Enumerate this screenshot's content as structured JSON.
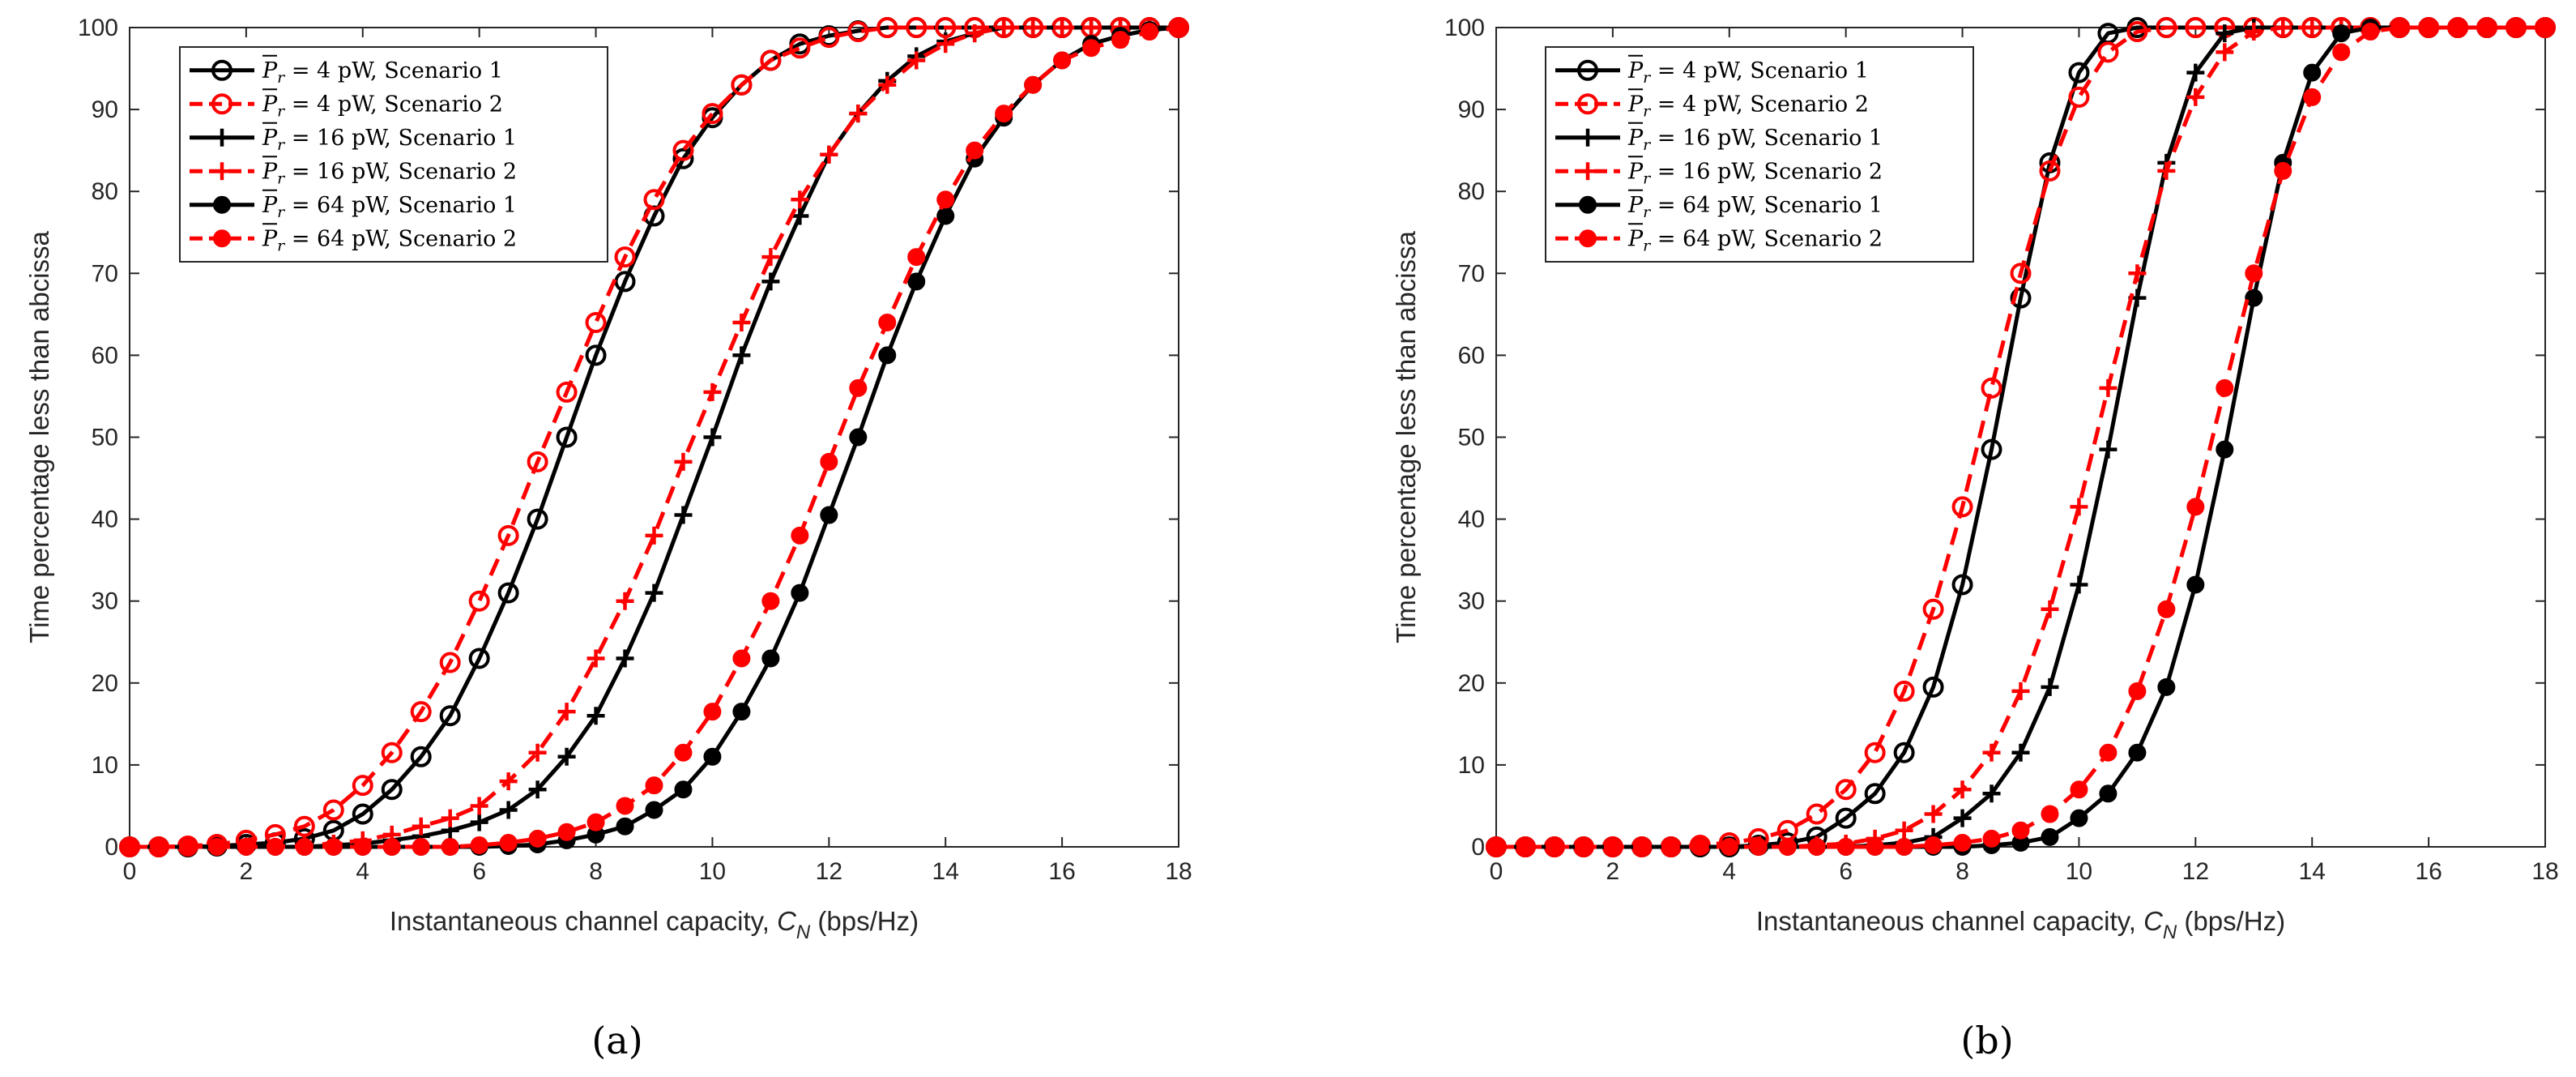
{
  "chart_data": [
    {
      "type": "line",
      "panel_label": "(a)",
      "xlabel": "Instantaneous channel capacity, ",
      "xlabel_var": "C",
      "xlabel_sub": "N",
      "xlabel_unit": " (bps/Hz)",
      "ylabel": "Time percentage less than abcissa",
      "xlim": [
        0,
        18
      ],
      "ylim": [
        0,
        100
      ],
      "xticks": [
        "0",
        "2",
        "4",
        "6",
        "8",
        "10",
        "12",
        "14",
        "16",
        "18"
      ],
      "yticks": [
        "0",
        "10",
        "20",
        "30",
        "40",
        "50",
        "60",
        "70",
        "80",
        "90",
        "100"
      ],
      "x": [
        0,
        0.5,
        1,
        1.5,
        2,
        2.5,
        3,
        3.5,
        4,
        4.5,
        5,
        5.5,
        6,
        6.5,
        7,
        7.5,
        8,
        8.5,
        9,
        9.5,
        10,
        10.5,
        11,
        11.5,
        12,
        12.5,
        13,
        13.5,
        14,
        14.5,
        15,
        15.5,
        16,
        16.5,
        17,
        17.5,
        18
      ],
      "series": [
        {
          "name_pre": "P",
          "name_sub": "r",
          "name_post": " = 4 pW, Scenario 1",
          "color": "#000000",
          "dashed": false,
          "marker": "open-circle",
          "values": [
            0,
            0,
            0,
            0.1,
            0.3,
            0.5,
            1,
            2,
            4,
            7,
            11,
            16,
            23,
            31,
            40,
            50,
            60,
            69,
            77,
            84,
            89,
            93,
            96,
            98,
            99,
            99.6,
            100,
            100,
            100,
            100,
            100,
            100,
            100,
            100,
            100,
            100,
            100
          ]
        },
        {
          "name_pre": "P",
          "name_sub": "r",
          "name_post": " = 4 pW, Scenario 2",
          "color": "#ff0000",
          "dashed": true,
          "marker": "open-circle",
          "values": [
            0,
            0,
            0.1,
            0.3,
            0.8,
            1.5,
            2.5,
            4.5,
            7.5,
            11.5,
            16.5,
            22.5,
            30,
            38,
            47,
            55.5,
            64,
            72,
            79,
            85,
            89.5,
            93,
            96,
            97.5,
            98.8,
            99.5,
            100,
            100,
            100,
            100,
            100,
            100,
            100,
            100,
            100,
            100,
            100
          ]
        },
        {
          "name_pre": "P",
          "name_sub": "r",
          "name_post": " = 16 pW, Scenario 1",
          "color": "#000000",
          "dashed": false,
          "marker": "plus",
          "values": [
            0,
            0,
            0,
            0,
            0,
            0,
            0,
            0.2,
            0.4,
            0.8,
            1.3,
            2,
            3,
            4.5,
            7,
            11,
            16,
            23,
            31,
            40.5,
            50,
            60,
            69,
            77,
            84.5,
            89.5,
            93.5,
            96.5,
            98.3,
            99.3,
            100,
            100,
            100,
            100,
            100,
            100,
            100
          ]
        },
        {
          "name_pre": "P",
          "name_sub": "r",
          "name_post": " = 16 pW, Scenario 2",
          "color": "#ff0000",
          "dashed": true,
          "marker": "plus",
          "values": [
            0,
            0,
            0,
            0,
            0,
            0,
            0.2,
            0.4,
            0.8,
            1.5,
            2.5,
            3.5,
            5,
            8,
            11.5,
            16.5,
            23,
            30,
            38,
            47,
            55.5,
            64,
            72,
            79,
            84.5,
            89.5,
            93,
            96,
            98,
            99.3,
            100,
            100,
            100,
            100,
            100,
            100,
            100
          ]
        },
        {
          "name_pre": "P",
          "name_sub": "r",
          "name_post": " = 64 pW, Scenario 1",
          "color": "#000000",
          "dashed": false,
          "marker": "filled-circle",
          "values": [
            0,
            0,
            0,
            0,
            0,
            0,
            0,
            0,
            0,
            0,
            0,
            0,
            0,
            0.1,
            0.3,
            0.8,
            1.5,
            2.5,
            4.5,
            7,
            11,
            16.5,
            23,
            31,
            40.5,
            50,
            60,
            69,
            77,
            84,
            89,
            93,
            96,
            98,
            99,
            99.7,
            100
          ]
        },
        {
          "name_pre": "P",
          "name_sub": "r",
          "name_post": " = 64 pW, Scenario 2",
          "color": "#ff0000",
          "dashed": true,
          "marker": "filled-circle",
          "values": [
            0,
            0,
            0,
            0,
            0,
            0,
            0,
            0,
            0,
            0,
            0,
            0,
            0.2,
            0.5,
            1,
            1.8,
            3,
            5,
            7.5,
            11.5,
            16.5,
            23,
            30,
            38,
            47,
            56,
            64,
            72,
            79,
            85,
            89.5,
            93,
            96,
            97.5,
            98.5,
            99.5,
            100
          ]
        }
      ]
    },
    {
      "type": "line",
      "panel_label": "(b)",
      "xlabel": "Instantaneous channel capacity, ",
      "xlabel_var": "C",
      "xlabel_sub": "N",
      "xlabel_unit": " (bps/Hz)",
      "ylabel": "Time percentage less than abcissa",
      "xlim": [
        0,
        18
      ],
      "ylim": [
        0,
        100
      ],
      "xticks": [
        "0",
        "2",
        "4",
        "6",
        "8",
        "10",
        "12",
        "14",
        "16",
        "18"
      ],
      "yticks": [
        "0",
        "10",
        "20",
        "30",
        "40",
        "50",
        "60",
        "70",
        "80",
        "90",
        "100"
      ],
      "x": [
        0,
        0.5,
        1,
        1.5,
        2,
        2.5,
        3,
        3.5,
        4,
        4.5,
        5,
        5.5,
        6,
        6.5,
        7,
        7.5,
        8,
        8.5,
        9,
        9.5,
        10,
        10.5,
        11,
        11.5,
        12,
        12.5,
        13,
        13.5,
        14,
        14.5,
        15,
        15.5,
        16,
        16.5,
        17,
        17.5,
        18
      ],
      "series": [
        {
          "name_pre": "P",
          "name_sub": "r",
          "name_post": " = 4 pW, Scenario 1",
          "color": "#000000",
          "dashed": false,
          "marker": "open-circle",
          "values": [
            0,
            0,
            0,
            0,
            0,
            0,
            0,
            0,
            0,
            0.2,
            0.5,
            1.2,
            3.5,
            6.5,
            11.5,
            19.5,
            32,
            48.5,
            67,
            83.5,
            94.5,
            99.3,
            100,
            100,
            100,
            100,
            100,
            100,
            100,
            100,
            100,
            100,
            100,
            100,
            100,
            100,
            100
          ]
        },
        {
          "name_pre": "P",
          "name_sub": "r",
          "name_post": " = 4 pW, Scenario 2",
          "color": "#ff0000",
          "dashed": true,
          "marker": "open-circle",
          "values": [
            0,
            0,
            0,
            0,
            0,
            0,
            0,
            0.2,
            0.5,
            1,
            2,
            4,
            7,
            11.5,
            19,
            29,
            41.5,
            56,
            70,
            82.5,
            91.5,
            97,
            99.5,
            100,
            100,
            100,
            100,
            100,
            100,
            100,
            100,
            100,
            100,
            100,
            100,
            100,
            100
          ]
        },
        {
          "name_pre": "P",
          "name_sub": "r",
          "name_post": " = 16 pW, Scenario 1",
          "color": "#000000",
          "dashed": false,
          "marker": "plus",
          "values": [
            0,
            0,
            0,
            0,
            0,
            0,
            0,
            0,
            0,
            0,
            0,
            0,
            0,
            0.2,
            0.5,
            1.2,
            3.5,
            6.5,
            11.5,
            19.5,
            32,
            48.5,
            67,
            83.5,
            94.5,
            99.3,
            100,
            100,
            100,
            100,
            100,
            100,
            100,
            100,
            100,
            100,
            100
          ]
        },
        {
          "name_pre": "P",
          "name_sub": "r",
          "name_post": " = 16 pW, Scenario 2",
          "color": "#ff0000",
          "dashed": true,
          "marker": "plus",
          "values": [
            0,
            0,
            0,
            0,
            0,
            0,
            0,
            0,
            0,
            0,
            0,
            0.2,
            0.4,
            1,
            2,
            4,
            7,
            11.5,
            19,
            29,
            41.5,
            56,
            70,
            82.5,
            91.5,
            97,
            99.5,
            100,
            100,
            100,
            100,
            100,
            100,
            100,
            100,
            100,
            100
          ]
        },
        {
          "name_pre": "P",
          "name_sub": "r",
          "name_post": " = 64 pW, Scenario 1",
          "color": "#000000",
          "dashed": false,
          "marker": "filled-circle",
          "values": [
            0,
            0,
            0,
            0,
            0,
            0,
            0,
            0,
            0,
            0,
            0,
            0,
            0,
            0,
            0,
            0,
            0,
            0.2,
            0.5,
            1.2,
            3.5,
            6.5,
            11.5,
            19.5,
            32,
            48.5,
            67,
            83.5,
            94.5,
            99.3,
            100,
            100,
            100,
            100,
            100,
            100,
            100
          ]
        },
        {
          "name_pre": "P",
          "name_sub": "r",
          "name_post": " = 64 pW, Scenario 2",
          "color": "#ff0000",
          "dashed": true,
          "marker": "filled-circle",
          "values": [
            0,
            0,
            0,
            0,
            0,
            0,
            0,
            0,
            0,
            0,
            0,
            0,
            0,
            0,
            0,
            0.2,
            0.5,
            1,
            2,
            4,
            7,
            11.5,
            19,
            29,
            41.5,
            56,
            70,
            82.5,
            91.5,
            97,
            99.5,
            100,
            100,
            100,
            100,
            100,
            100
          ]
        }
      ]
    }
  ]
}
